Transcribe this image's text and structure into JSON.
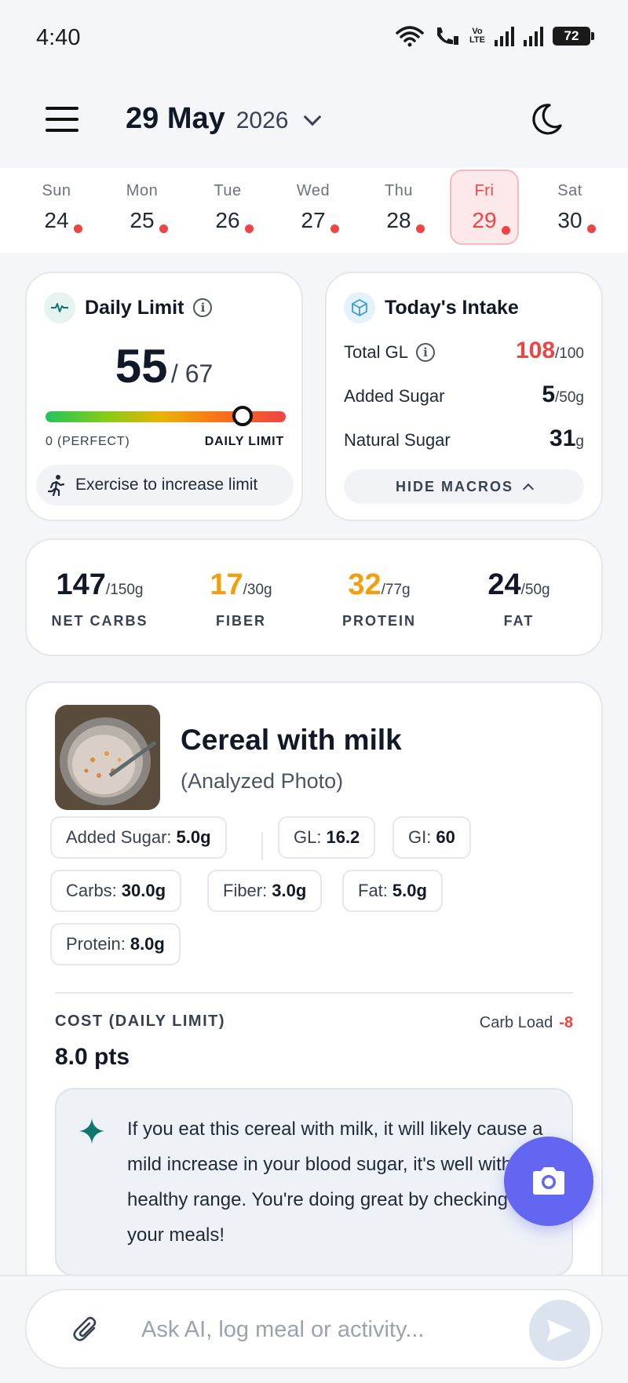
{
  "status_bar": {
    "time": "4:40",
    "volte": "Vo\nLTE",
    "battery": "72"
  },
  "header": {
    "date": "29 May",
    "year": "2026"
  },
  "week": [
    {
      "day": "Sun",
      "date": "24",
      "has_dot": true,
      "active": false
    },
    {
      "day": "Mon",
      "date": "25",
      "has_dot": true,
      "active": false
    },
    {
      "day": "Tue",
      "date": "26",
      "has_dot": true,
      "active": false
    },
    {
      "day": "Wed",
      "date": "27",
      "has_dot": true,
      "active": false
    },
    {
      "day": "Thu",
      "date": "28",
      "has_dot": true,
      "active": false
    },
    {
      "day": "Fri",
      "date": "29",
      "has_dot": true,
      "active": true
    },
    {
      "day": "Sat",
      "date": "30",
      "has_dot": true,
      "active": false
    }
  ],
  "daily_limit": {
    "title": "Daily Limit",
    "value": "55",
    "limit": "/ 67",
    "bar_min_label": "0 (PERFECT)",
    "bar_max_label": "DAILY LIMIT",
    "bar_fraction": 0.82,
    "exercise_label": "Exercise to increase limit"
  },
  "intake": {
    "title": "Today's Intake",
    "rows": [
      {
        "label": "Total GL",
        "value": "108",
        "unit": "/100",
        "highlight": true,
        "info": true
      },
      {
        "label": "Added Sugar",
        "value": "5",
        "unit": "/50g",
        "highlight": false,
        "info": false
      },
      {
        "label": "Natural Sugar",
        "value": "31",
        "unit": "g",
        "highlight": false,
        "info": false
      }
    ],
    "hide_macros_label": "HIDE MACROS"
  },
  "macros": [
    {
      "value": "147",
      "unit": "/150g",
      "label": "NET CARBS",
      "color": "#111827"
    },
    {
      "value": "17",
      "unit": "/30g",
      "label": "FIBER",
      "color": "#f59e0b"
    },
    {
      "value": "32",
      "unit": "/77g",
      "label": "PROTEIN",
      "color": "#f59e0b"
    },
    {
      "value": "24",
      "unit": "/50g",
      "label": "FAT",
      "color": "#111827"
    }
  ],
  "meal": {
    "title": "Cereal with milk",
    "subtitle": "(Analyzed Photo)",
    "chips": [
      {
        "label": "Added Sugar:",
        "value": "5.0g"
      },
      {
        "label": "GL:",
        "value": "16.2"
      },
      {
        "label": "GI:",
        "value": "60"
      },
      {
        "label": "Carbs:",
        "value": "30.0g"
      },
      {
        "label": "Fiber:",
        "value": "3.0g"
      },
      {
        "label": "Fat:",
        "value": "5.0g"
      },
      {
        "label": "Protein:",
        "value": "8.0g"
      }
    ],
    "cost_label": "COST (DAILY LIMIT)",
    "cost_value": "8.0 pts",
    "carb_load_label": "Carb Load",
    "carb_load_value": "-8",
    "ai_text": "If you eat this cereal with milk, it will likely cause a mild increase in your blood sugar, it's well within a healthy range. You're doing great by checking your meals!"
  },
  "chat": {
    "placeholder": "Ask AI, log meal or activity..."
  },
  "colors": {
    "accent": "#6366f1",
    "danger": "#ef4444",
    "warning": "#f59e0b",
    "teal": "#0f766e"
  }
}
